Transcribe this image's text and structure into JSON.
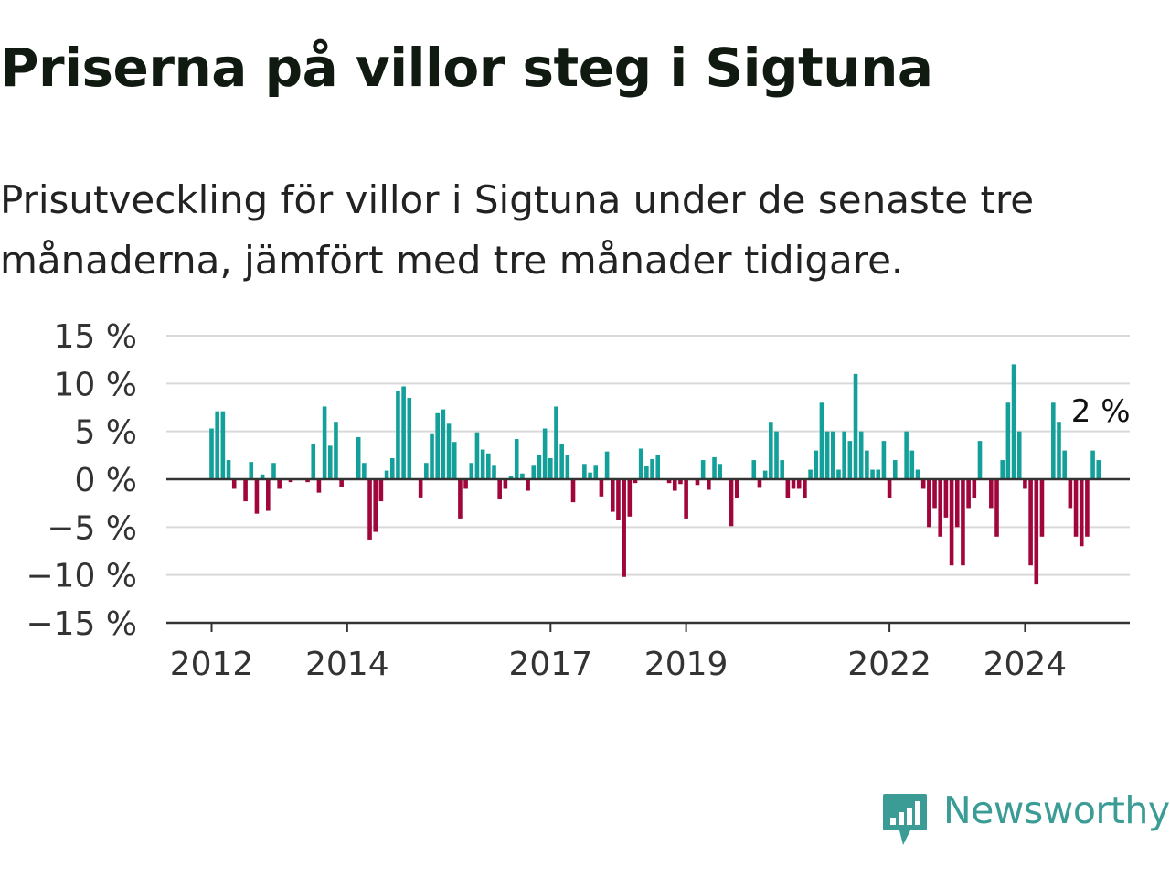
{
  "title": "Priserna på villor steg i Sigtuna",
  "subtitle": "Prisutveckling för villor i Sigtuna under de senaste tre månaderna, jämfört med tre månader tidigare.",
  "logo": {
    "text": "Newsworthy",
    "icon": "newsworthy-logo-icon",
    "color": "#3a9c95"
  },
  "colors": {
    "positive": "#14a09a",
    "negative": "#a0063c",
    "grid": "#d9d9d9",
    "zero": "#333333",
    "text": "#333333"
  },
  "chart_data": {
    "type": "bar",
    "title": "Priserna på villor steg i Sigtuna",
    "xlabel": "",
    "ylabel": "",
    "ylim": [
      -15,
      15
    ],
    "yticks": [
      15,
      10,
      5,
      0,
      -5,
      -10,
      -15
    ],
    "ytick_labels": [
      "15 %",
      "10 %",
      "5 %",
      "0 %",
      "−5 %",
      "−10 %",
      "−15 %"
    ],
    "xticks": [
      2012,
      2014,
      2017,
      2019,
      2022,
      2024
    ],
    "xtick_labels": [
      "2012",
      "2014",
      "2017",
      "2019",
      "2022",
      "2024"
    ],
    "grid": true,
    "start": "2012-01",
    "frequency": "monthly",
    "end_label": "2 %",
    "values": [
      5.3,
      7.1,
      7.1,
      2.0,
      -1.0,
      0.0,
      -2.3,
      1.8,
      -3.6,
      0.5,
      -3.3,
      1.7,
      -1.0,
      0.0,
      -0.3,
      0.0,
      0.0,
      -0.3,
      3.7,
      -1.4,
      7.6,
      3.5,
      6.0,
      -0.8,
      0.0,
      0.0,
      4.4,
      1.7,
      -6.3,
      -5.5,
      -2.3,
      0.9,
      2.2,
      9.2,
      9.7,
      8.5,
      0.0,
      -1.9,
      1.7,
      4.8,
      6.9,
      7.3,
      5.8,
      3.9,
      -4.1,
      -1.0,
      1.7,
      4.9,
      3.1,
      2.7,
      1.5,
      -2.1,
      -1.0,
      0.3,
      4.2,
      0.6,
      -1.2,
      1.5,
      2.5,
      5.3,
      2.2,
      7.6,
      3.7,
      2.5,
      -2.4,
      0.0,
      1.6,
      0.7,
      1.5,
      -1.8,
      2.9,
      -3.4,
      -4.3,
      -10.2,
      -3.9,
      -0.4,
      3.2,
      1.4,
      2.1,
      2.5,
      0.0,
      -0.4,
      -1.2,
      -0.5,
      -4.1,
      0.0,
      -0.6,
      2.0,
      -1.1,
      2.3,
      1.6,
      0.0,
      -4.9,
      -2.0,
      0.0,
      0.0,
      2.0,
      -0.9,
      0.9,
      6.0,
      5.0,
      2.0,
      -2.0,
      -1.0,
      -1.0,
      -2.0,
      1.0,
      3.0,
      8.0,
      5.0,
      5.0,
      1.0,
      5.0,
      4.0,
      11.0,
      5.0,
      3.0,
      1.0,
      1.0,
      4.0,
      -2.0,
      2.0,
      0.0,
      5.0,
      3.0,
      1.0,
      -1.0,
      -5.0,
      -3.0,
      -6.0,
      -4.0,
      -9.0,
      -5.0,
      -9.0,
      -3.0,
      -2.0,
      4.0,
      0.0,
      -3.0,
      -6.0,
      2.0,
      8.0,
      12.0,
      5.0,
      -1.0,
      -9.0,
      -11.0,
      -6.0,
      0.0,
      8.0,
      6.0,
      3.0,
      -3.0,
      -6.0,
      -7.0,
      -6.0,
      3.0,
      2.0
    ]
  }
}
